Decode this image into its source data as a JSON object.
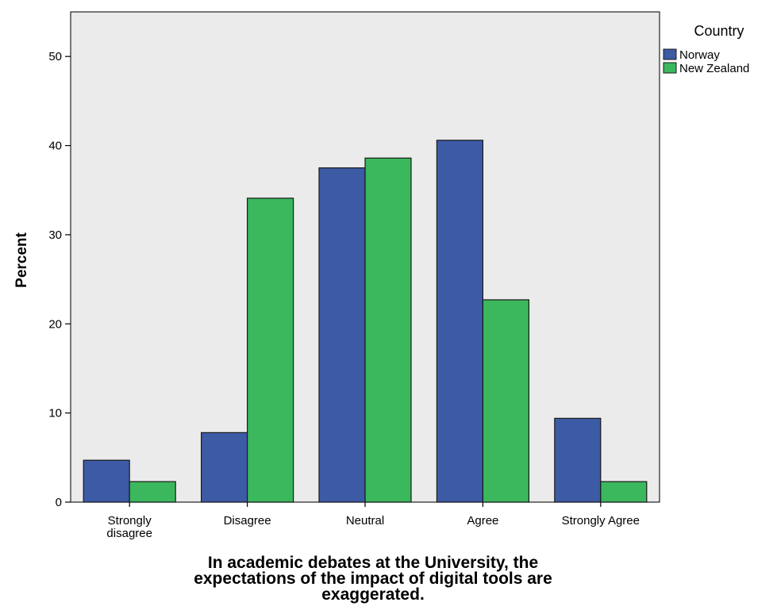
{
  "chart_data": {
    "type": "bar",
    "categories": [
      "Strongly disagree",
      "Disagree",
      "Neutral",
      "Agree",
      "Strongly Agree"
    ],
    "category_lines": [
      [
        "Strongly",
        "disagree"
      ],
      [
        "Disagree"
      ],
      [
        "Neutral"
      ],
      [
        "Agree"
      ],
      [
        "Strongly Agree"
      ]
    ],
    "series": [
      {
        "name": "Norway",
        "color": "#3d5aa5",
        "values": [
          4.7,
          7.8,
          37.5,
          40.6,
          9.4
        ]
      },
      {
        "name": "New Zealand",
        "color": "#3bb75d",
        "values": [
          2.3,
          34.1,
          38.6,
          22.7,
          2.3
        ]
      }
    ],
    "ylabel": "Percent",
    "xlabel_lines": [
      "In academic debates at the University, the",
      "expectations of the impact of digital tools are",
      "exaggerated."
    ],
    "legend_title": "Country",
    "legend_position": "top-right",
    "ylim": [
      0,
      55
    ],
    "yticks": [
      0,
      10,
      20,
      30,
      40,
      50
    ],
    "plot_background": "#ebebeb",
    "grid": false
  }
}
